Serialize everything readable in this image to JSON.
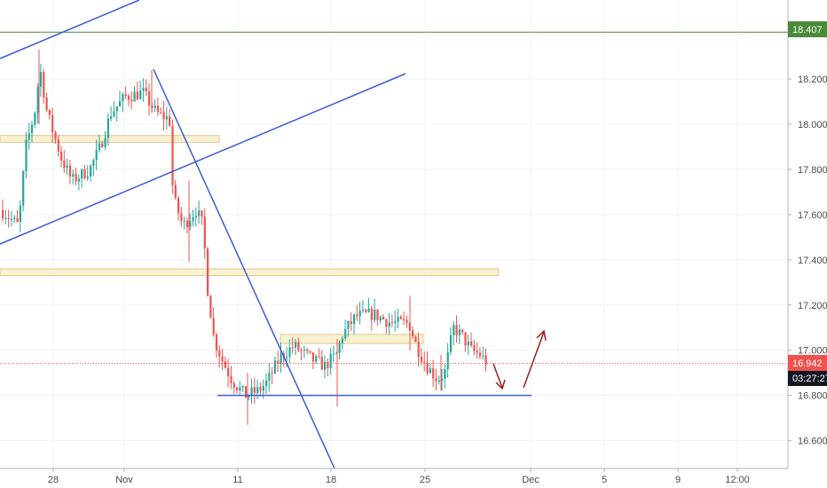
{
  "chart_data": {
    "type": "candlestick",
    "y_axis": {
      "ticks": [
        "18.200",
        "18.000",
        "17.800",
        "17.600",
        "17.400",
        "17.200",
        "17.000",
        "16.800",
        "16.600"
      ],
      "tick_values": [
        18.2,
        18.0,
        17.8,
        17.6,
        17.4,
        17.2,
        17.0,
        16.8,
        16.6
      ],
      "range": [
        16.48,
        18.63
      ]
    },
    "x_axis": {
      "ticks": [
        "28",
        "Nov",
        "11",
        "18",
        "25",
        "Dec",
        "5",
        "9",
        "12:00"
      ]
    },
    "price_labels": {
      "resistance": "18.407",
      "last_price": "16.942",
      "countdown": "03:27:27"
    },
    "levels": {
      "resistance": 18.407,
      "last_price": 16.942,
      "support": 16.8
    },
    "zones": [
      {
        "from": "left edge",
        "to": "Nov 8",
        "low": 17.92,
        "high": 17.95
      },
      {
        "from": "left edge",
        "to": "Dec 1",
        "low": 17.33,
        "high": 17.36
      },
      {
        "from": "Nov 14",
        "to": "Nov 26",
        "low": 17.03,
        "high": 17.07
      }
    ],
    "candles_summary": [
      {
        "period": "Oct 25-27",
        "approx_close": 17.6
      },
      {
        "period": "Oct 28",
        "approx_high": 18.33,
        "approx_close": 18.05
      },
      {
        "period": "Oct 31",
        "approx_close": 17.8
      },
      {
        "period": "Nov 3-4",
        "approx_high": 18.24,
        "approx_close": 18.1
      },
      {
        "period": "Nov 7",
        "approx_close": 17.6
      },
      {
        "period": "Nov 9",
        "approx_close": 17.35
      },
      {
        "period": "Nov 10",
        "approx_close": 16.95
      },
      {
        "period": "Nov 12",
        "approx_low": 16.67,
        "approx_close": 16.85
      },
      {
        "period": "Nov 15",
        "approx_close": 17.02
      },
      {
        "period": "Nov 18",
        "approx_low": 16.75,
        "approx_close": 17.0
      },
      {
        "period": "Nov 21",
        "approx_close": 17.15
      },
      {
        "period": "Nov 24",
        "approx_high": 17.24,
        "approx_close": 17.05
      },
      {
        "period": "Nov 26",
        "approx_low": 16.82,
        "approx_close": 16.87
      },
      {
        "period": "Nov 28",
        "approx_close": 17.08
      },
      {
        "period": "Nov 30",
        "approx_close": 16.942
      }
    ],
    "colors": {
      "up": "#26a69a",
      "down": "#ef5350",
      "trendline": "#3d5bd9",
      "resistance_line": "#4a8a3a",
      "last_price_line": "#ef5350",
      "zone_fill": "#faf0d2",
      "zone_border": "#e0c88e",
      "arrow": "#9a1e1e",
      "badge_dark": "#131722"
    }
  }
}
